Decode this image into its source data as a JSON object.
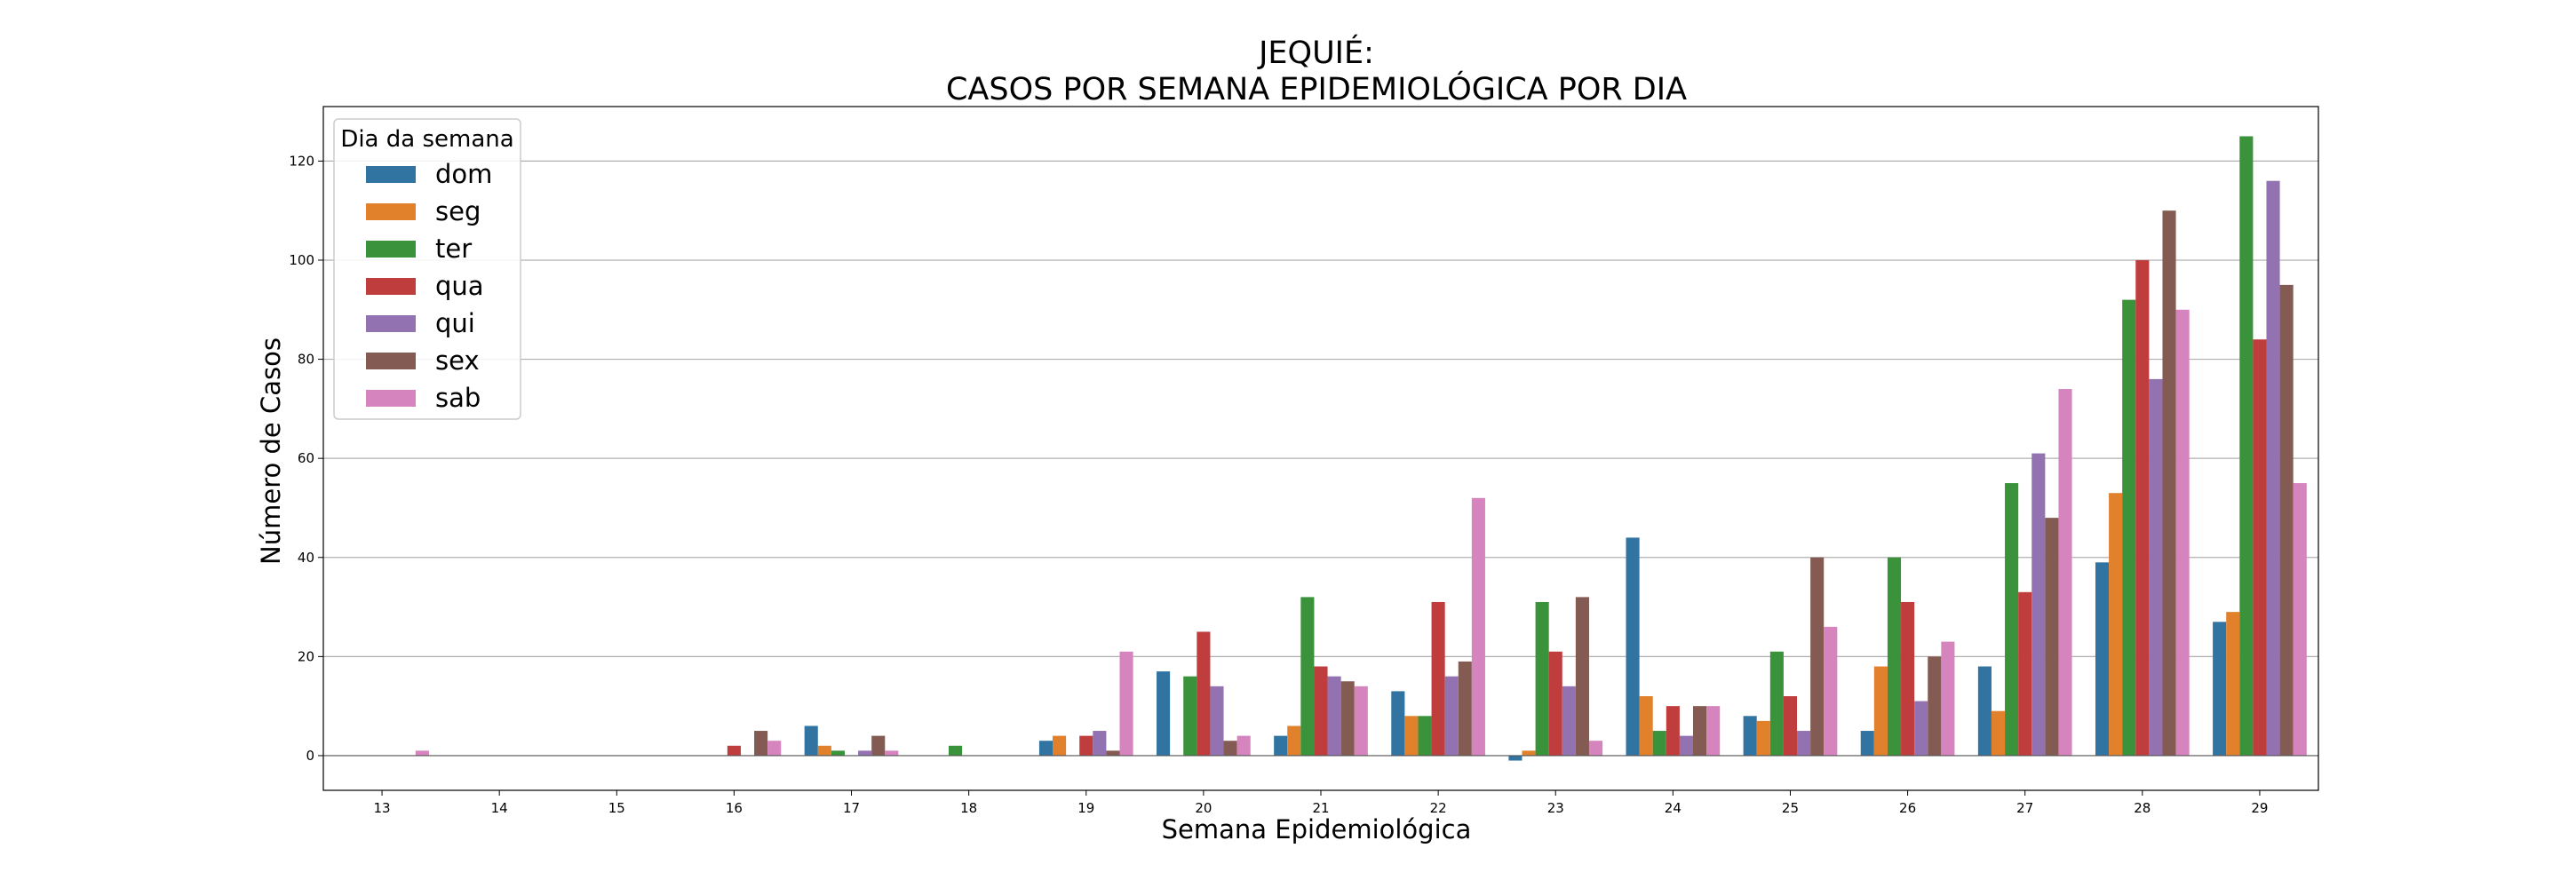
{
  "chart_data": {
    "type": "bar",
    "title_line1": "JEQUIÉ:",
    "title_line2": "CASOS POR SEMANA EPIDEMIOLÓGICA POR DIA",
    "xlabel": "Semana Epidemiológica",
    "ylabel": "Número de Casos",
    "ylim": [
      -7,
      131
    ],
    "yticks": [
      0,
      20,
      40,
      60,
      80,
      100,
      120
    ],
    "grid": "horizontal",
    "legend_title": "Dia da semana",
    "legend_position": "top-left",
    "categories": [
      "13",
      "14",
      "15",
      "16",
      "17",
      "18",
      "19",
      "20",
      "21",
      "22",
      "23",
      "24",
      "25",
      "26",
      "27",
      "28",
      "29"
    ],
    "series": [
      {
        "name": "dom",
        "color": "#3274a1",
        "values": [
          0,
          0,
          0,
          0,
          6,
          0,
          3,
          17,
          4,
          13,
          -1,
          44,
          8,
          5,
          18,
          39,
          27
        ]
      },
      {
        "name": "seg",
        "color": "#e1812c",
        "values": [
          0,
          0,
          0,
          0,
          2,
          0,
          4,
          0,
          6,
          8,
          1,
          12,
          7,
          18,
          9,
          53,
          29
        ]
      },
      {
        "name": "ter",
        "color": "#3a923a",
        "values": [
          0,
          0,
          0,
          0,
          1,
          2,
          0,
          16,
          32,
          8,
          31,
          5,
          21,
          40,
          55,
          92,
          125
        ]
      },
      {
        "name": "qua",
        "color": "#c03d3e",
        "values": [
          0,
          0,
          0,
          2,
          0,
          0,
          4,
          25,
          18,
          31,
          21,
          10,
          12,
          31,
          33,
          100,
          84
        ]
      },
      {
        "name": "qui",
        "color": "#9372b2",
        "values": [
          0,
          0,
          0,
          0,
          1,
          0,
          5,
          14,
          16,
          16,
          14,
          4,
          5,
          11,
          61,
          76,
          116
        ]
      },
      {
        "name": "sex",
        "color": "#845b53",
        "values": [
          0,
          0,
          0,
          5,
          4,
          0,
          1,
          3,
          15,
          19,
          32,
          10,
          40,
          20,
          48,
          110,
          95
        ]
      },
      {
        "name": "sab",
        "color": "#d684bd",
        "values": [
          1,
          0,
          0,
          3,
          1,
          0,
          21,
          4,
          14,
          52,
          3,
          10,
          26,
          23,
          74,
          90,
          55
        ]
      }
    ]
  }
}
